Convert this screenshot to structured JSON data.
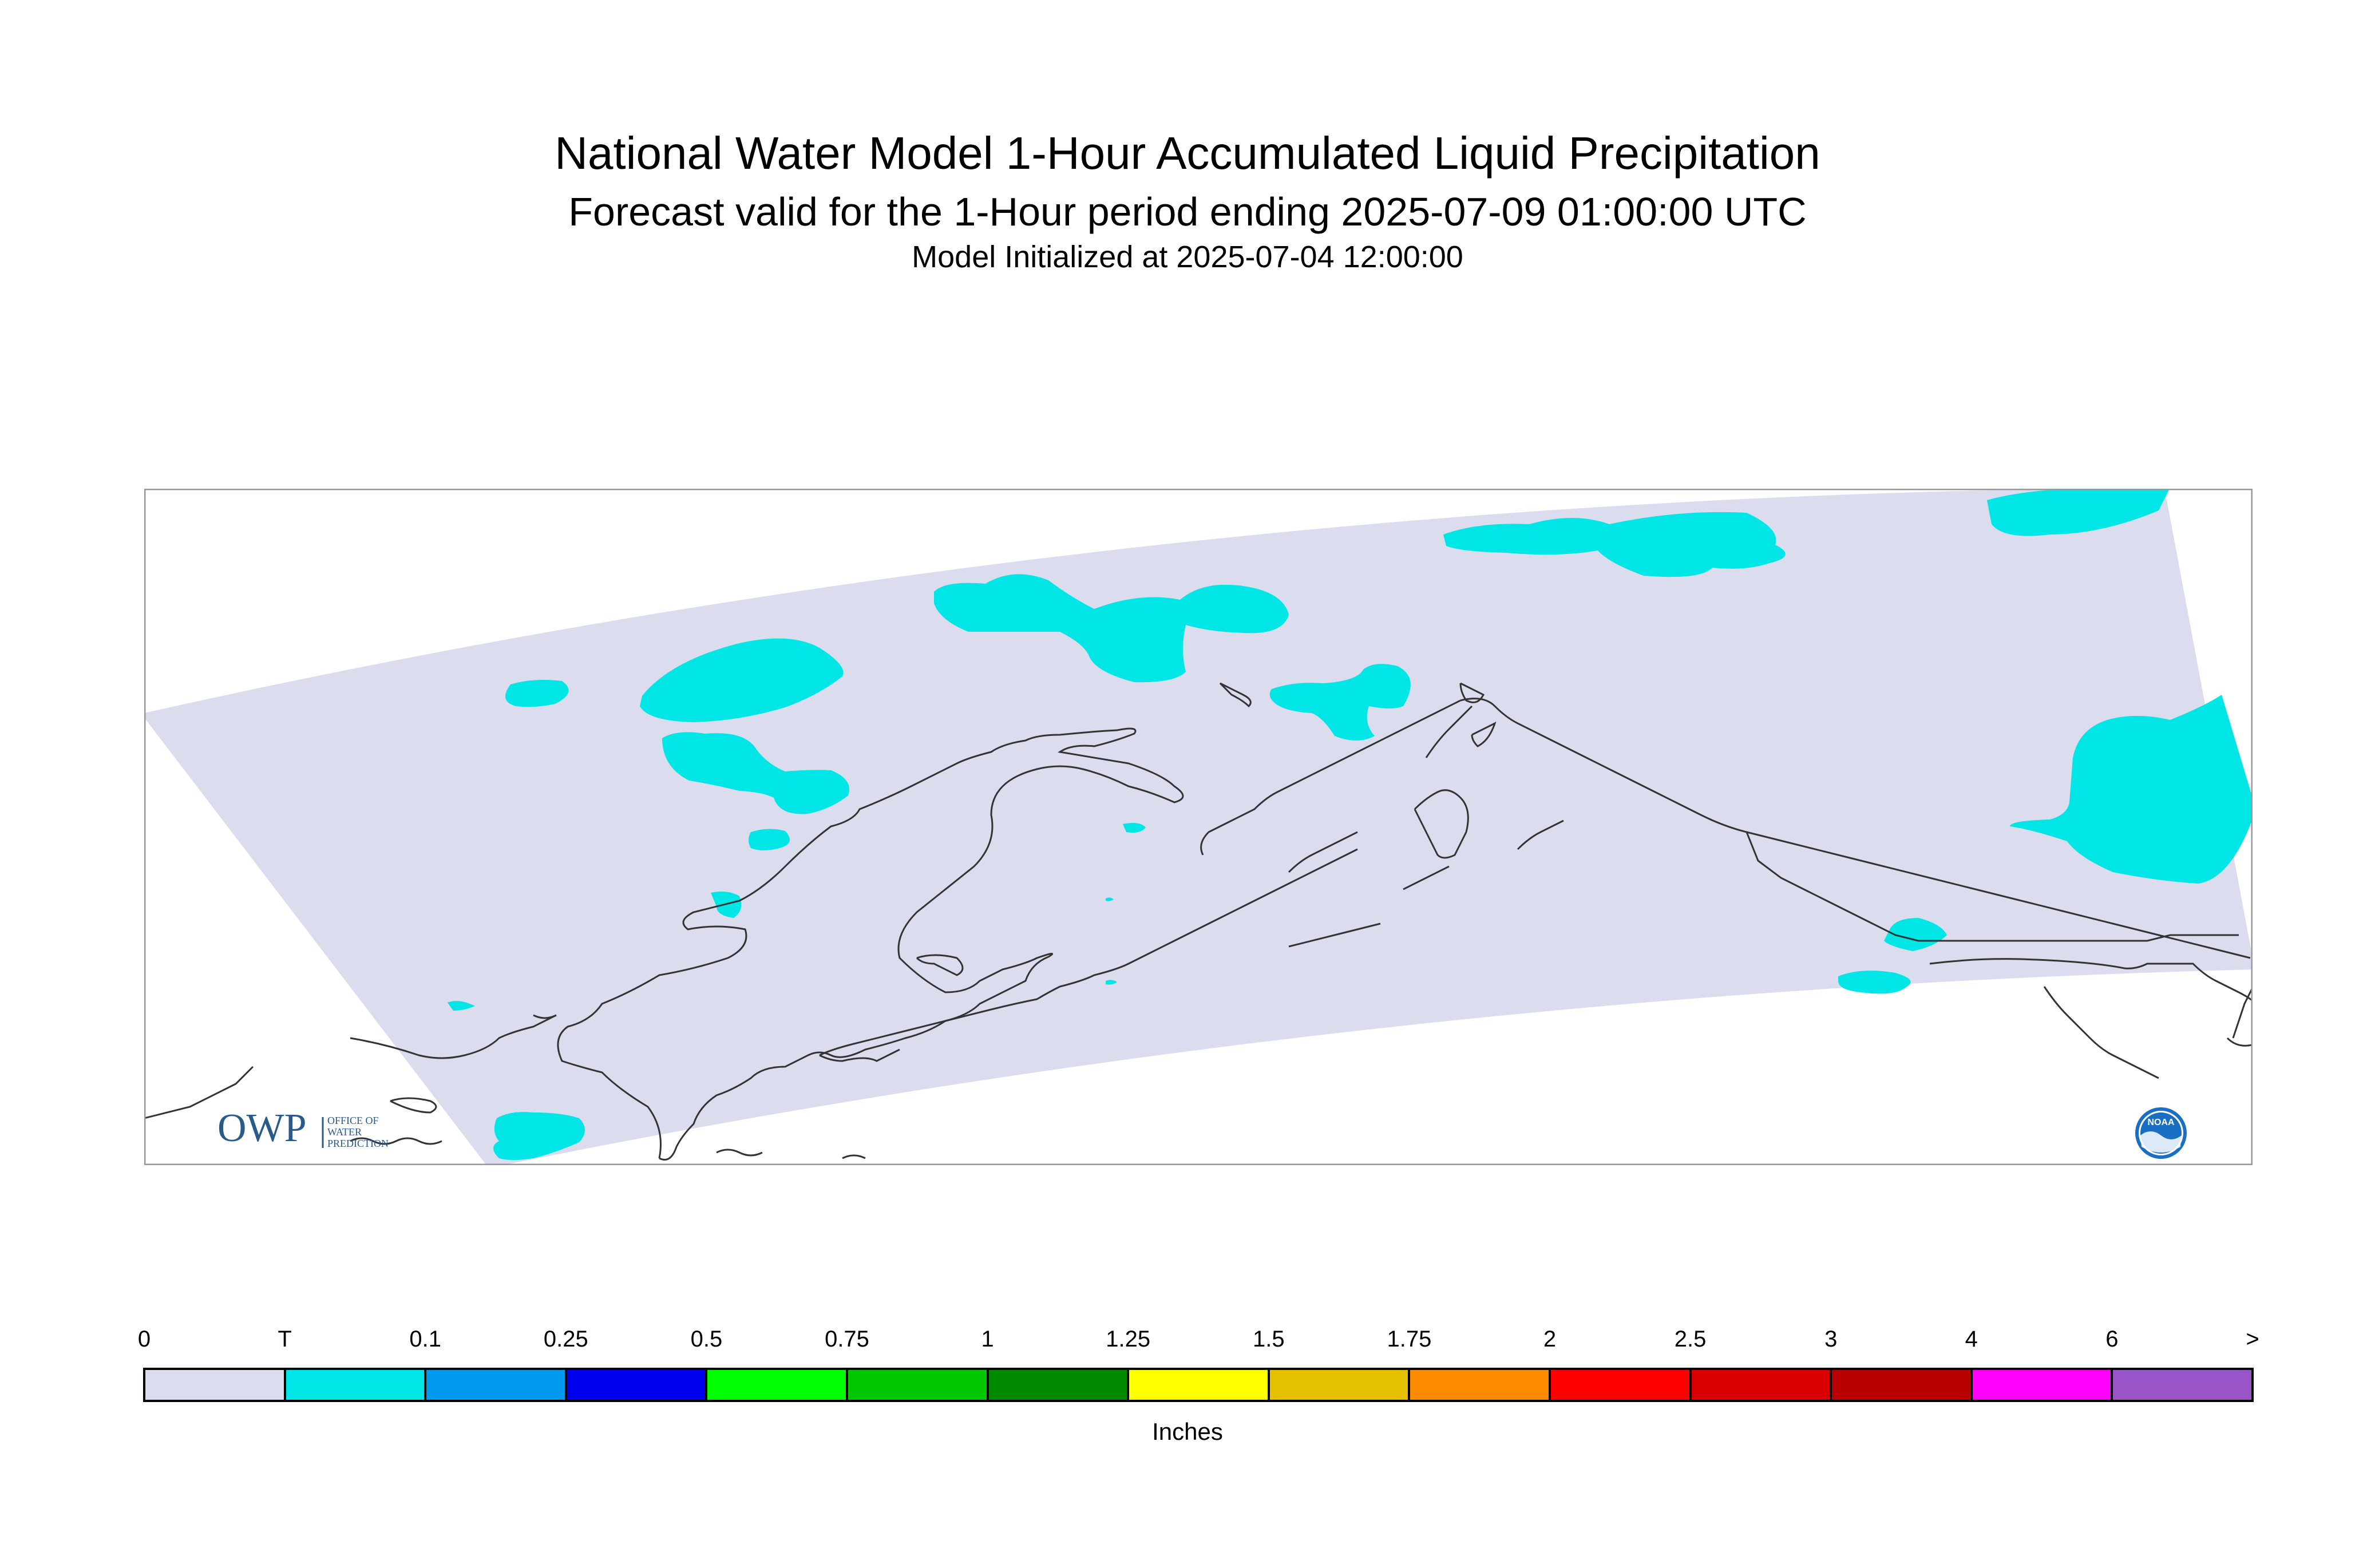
{
  "title": "National Water Model 1-Hour Accumulated Liquid Precipitation",
  "subtitle": "Forecast valid for the 1-Hour period ending 2025-07-09 01:00:00 UTC",
  "init_line": "Model Initialized at 2025-07-04 12:00:00",
  "logos": {
    "owp_mark": "OWP",
    "owp_text": [
      "OFFICE OF",
      "WATER",
      "PREDICTION"
    ],
    "noaa_mark": "NOAA"
  },
  "legend": {
    "unit_label": "Inches",
    "labels": [
      "0",
      "T",
      "0.1",
      "0.25",
      "0.5",
      "0.75",
      "1",
      "1.25",
      "1.5",
      "1.75",
      "2",
      "2.5",
      "3",
      "4",
      "6",
      ">"
    ],
    "colors": [
      "#dcdcef",
      "#00e5e5",
      "#0099ee",
      "#0000ee",
      "#00ff00",
      "#00c800",
      "#008a00",
      "#ffff00",
      "#e5c000",
      "#ff8c00",
      "#ff0000",
      "#d80000",
      "#b80000",
      "#ff00ff",
      "#9955c8"
    ]
  },
  "map_colors": {
    "domain_fill": "#dcdcef",
    "precip_trace": "#00e5e5",
    "coastline": "#333333",
    "frame": "#999999",
    "owp_blue": "#2a5a8a",
    "noaa_blue": "#1a6fc2"
  }
}
